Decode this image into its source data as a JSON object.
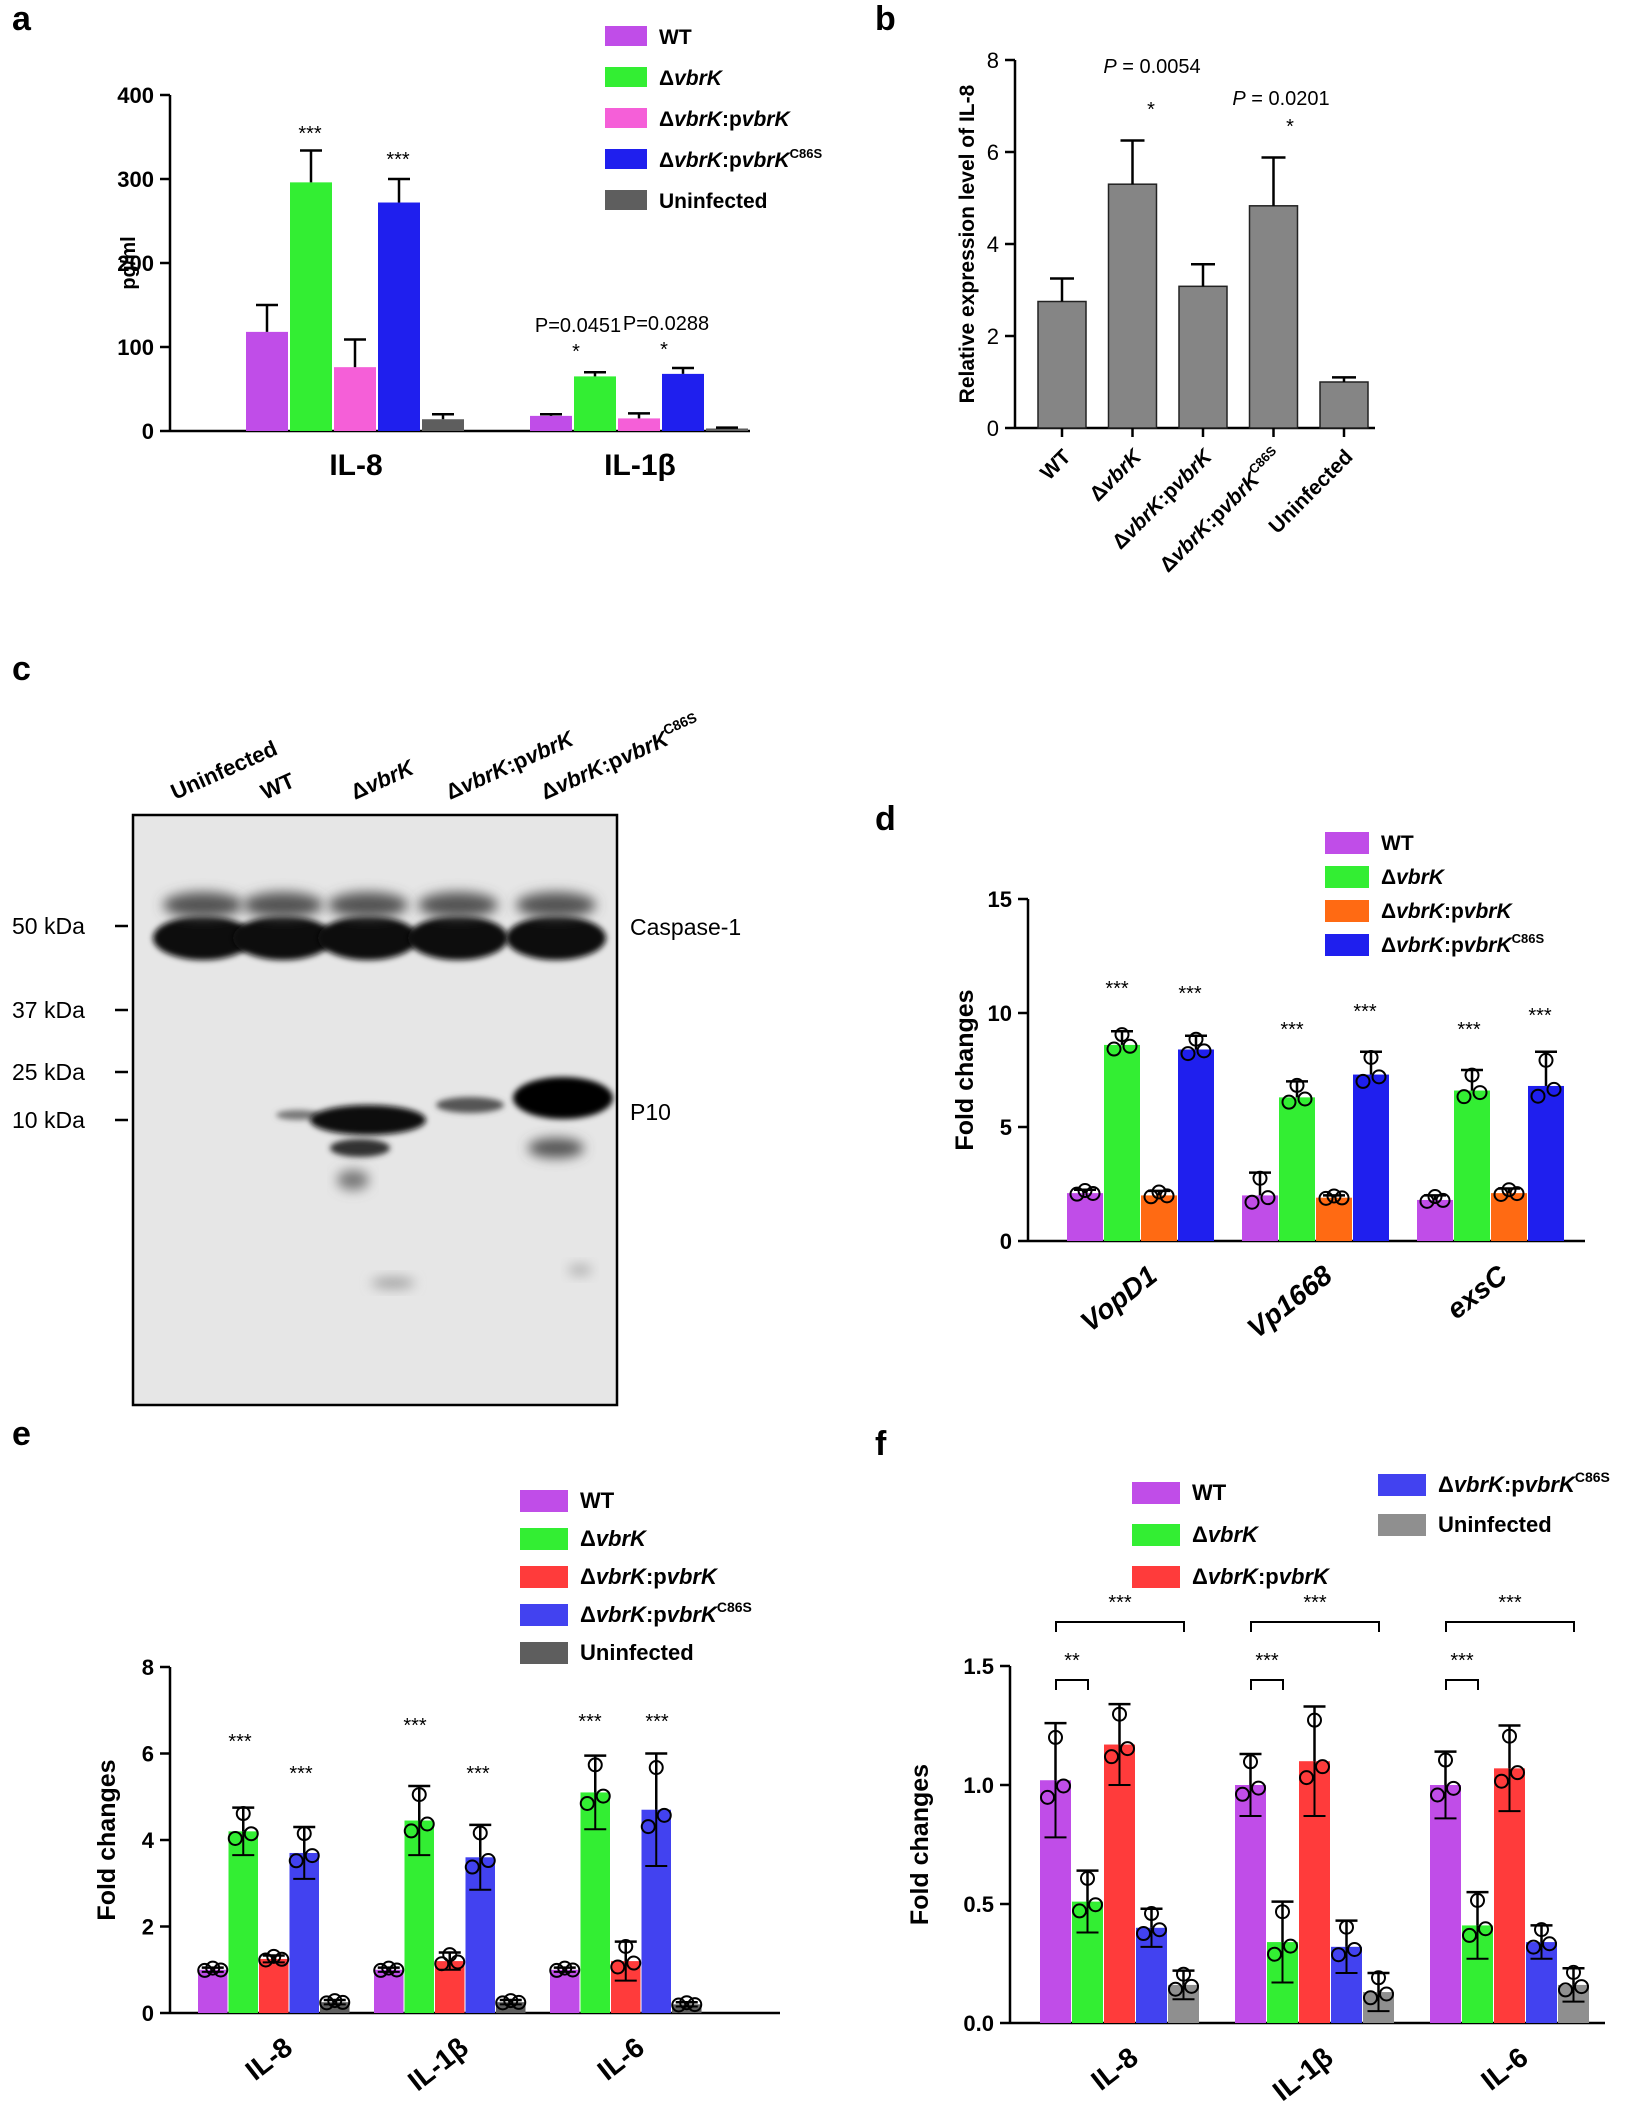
{
  "panel_labels": [
    "a",
    "b",
    "c",
    "d",
    "e",
    "f"
  ],
  "colors": {
    "wt": "#c04de8",
    "dvrbk": "#33ee33",
    "comp_a": "#f55fd8",
    "comp_d": "#ff6a13",
    "comp_ef": "#ff3b3b",
    "c86s": "#1f1fee",
    "c86s_ef": "#4242f0",
    "uninf": "#5e5e5e",
    "uninf_f": "#8f8f8f",
    "b_bar": "#858585"
  },
  "legend_labels": {
    "wt": "WT",
    "dvrbk_prefix": "Δ",
    "dvrbk_it": "vbrK",
    "comp_prefix": "Δ",
    "comp_it1": "vbrK",
    "comp_mid": ":p",
    "comp_it2": "vbrK",
    "c86s_sup": "C86S",
    "uninf": "Uninfected"
  },
  "chart_data": [
    {
      "panel": "a",
      "type": "bar",
      "ylabel": "pg/ml",
      "ylim": [
        0,
        400
      ],
      "yticks": [
        "0",
        "100",
        "200",
        "300",
        "400"
      ],
      "categories": [
        "IL-8",
        "IL-1β"
      ],
      "series": [
        {
          "name": "WT",
          "values": [
            118,
            18
          ],
          "err": [
            32,
            2
          ]
        },
        {
          "name": "ΔvbrK",
          "values": [
            296,
            65
          ],
          "err": [
            38,
            5
          ]
        },
        {
          "name": "ΔvbrK:pvbrK",
          "values": [
            76,
            15
          ],
          "err": [
            33,
            6
          ]
        },
        {
          "name": "ΔvbrK:pvbrKC86S",
          "values": [
            272,
            68
          ],
          "err": [
            28,
            7
          ]
        },
        {
          "name": "Uninfected",
          "values": [
            14,
            3
          ],
          "err": [
            6,
            1
          ]
        }
      ],
      "annotations": [
        "***",
        "***",
        "P=0.0451",
        "*",
        "P=0.0288",
        "*"
      ]
    },
    {
      "panel": "b",
      "type": "bar",
      "ylabel": "Relative expression level of IL-8",
      "ylim": [
        0,
        8
      ],
      "yticks": [
        "0",
        "2",
        "4",
        "6",
        "8"
      ],
      "categories": [
        "WT",
        "ΔvbrK",
        "ΔvbrK:pvbrK",
        "ΔvbrK:pvbrKC86S",
        "Uninfected"
      ],
      "values": [
        2.75,
        5.3,
        3.08,
        4.83,
        1.0
      ],
      "err": [
        0.5,
        0.95,
        0.48,
        1.05,
        0.1
      ],
      "annotations": [
        "P = 0.0054",
        "*",
        "P = 0.0201",
        "*"
      ],
      "p_label_prefix": "P",
      "p_values": [
        " = 0.0054",
        " = 0.0201"
      ]
    },
    {
      "panel": "d",
      "type": "bar",
      "ylabel": "Fold changes",
      "ylim": [
        0,
        15
      ],
      "yticks": [
        "0",
        "5",
        "10",
        "15"
      ],
      "categories": [
        "VopD1",
        "Vp1668",
        "exsC"
      ],
      "series": [
        {
          "name": "WT",
          "values": [
            2.1,
            2.0,
            1.8
          ]
        },
        {
          "name": "ΔvbrK",
          "values": [
            8.6,
            6.3,
            6.6
          ]
        },
        {
          "name": "ΔvbrK:pvbrK",
          "values": [
            2.0,
            1.9,
            2.1
          ]
        },
        {
          "name": "ΔvbrK:pvbrKC86S",
          "values": [
            8.4,
            7.3,
            6.8
          ]
        }
      ],
      "annotations": [
        "***",
        "***",
        "***",
        "***",
        "***",
        "***"
      ]
    },
    {
      "panel": "e",
      "type": "bar",
      "ylabel": "Fold changes",
      "ylim": [
        0,
        8
      ],
      "yticks": [
        "0",
        "2",
        "4",
        "6",
        "8"
      ],
      "categories": [
        "IL-8",
        "IL-1β",
        "IL-6"
      ],
      "series": [
        {
          "name": "WT",
          "values": [
            1.0,
            1.0,
            1.0
          ]
        },
        {
          "name": "ΔvbrK",
          "values": [
            4.2,
            4.45,
            5.1
          ]
        },
        {
          "name": "ΔvbrK:pvbrK",
          "values": [
            1.25,
            1.2,
            1.2
          ]
        },
        {
          "name": "ΔvbrK:pvbrKC86S",
          "values": [
            3.7,
            3.6,
            4.7
          ]
        },
        {
          "name": "Uninfected",
          "values": [
            0.25,
            0.25,
            0.2
          ]
        }
      ],
      "annotations": [
        "***",
        "***",
        "***",
        "***",
        "***",
        "***"
      ]
    },
    {
      "panel": "f",
      "type": "bar",
      "ylabel": "Fold changes",
      "ylim": [
        0,
        1.5
      ],
      "yticks": [
        "0.0",
        "0.5",
        "1.0",
        "1.5"
      ],
      "categories": [
        "IL-8",
        "IL-1β",
        "IL-6"
      ],
      "series": [
        {
          "name": "WT",
          "values": [
            1.02,
            1.0,
            1.0
          ]
        },
        {
          "name": "ΔvbrK",
          "values": [
            0.51,
            0.34,
            0.41
          ]
        },
        {
          "name": "ΔvbrK:pvbrK",
          "values": [
            1.17,
            1.1,
            1.07
          ]
        },
        {
          "name": "ΔvbrK:pvbrKC86S",
          "values": [
            0.4,
            0.32,
            0.34
          ]
        },
        {
          "name": "Uninfected",
          "values": [
            0.16,
            0.13,
            0.16
          ]
        }
      ],
      "annotations": [
        "**",
        "***",
        "***",
        "***",
        "***",
        "***"
      ]
    }
  ],
  "blot": {
    "lanes": [
      "Uninfected",
      "WT",
      "ΔvbrK",
      "ΔvbrK:pvbrK",
      "ΔvbrK:pvbrKC86S"
    ],
    "markers": [
      "50 kDa",
      "37 kDa",
      "25 kDa",
      "10 kDa"
    ],
    "bands": [
      "Caspase-1",
      "P10"
    ]
  }
}
